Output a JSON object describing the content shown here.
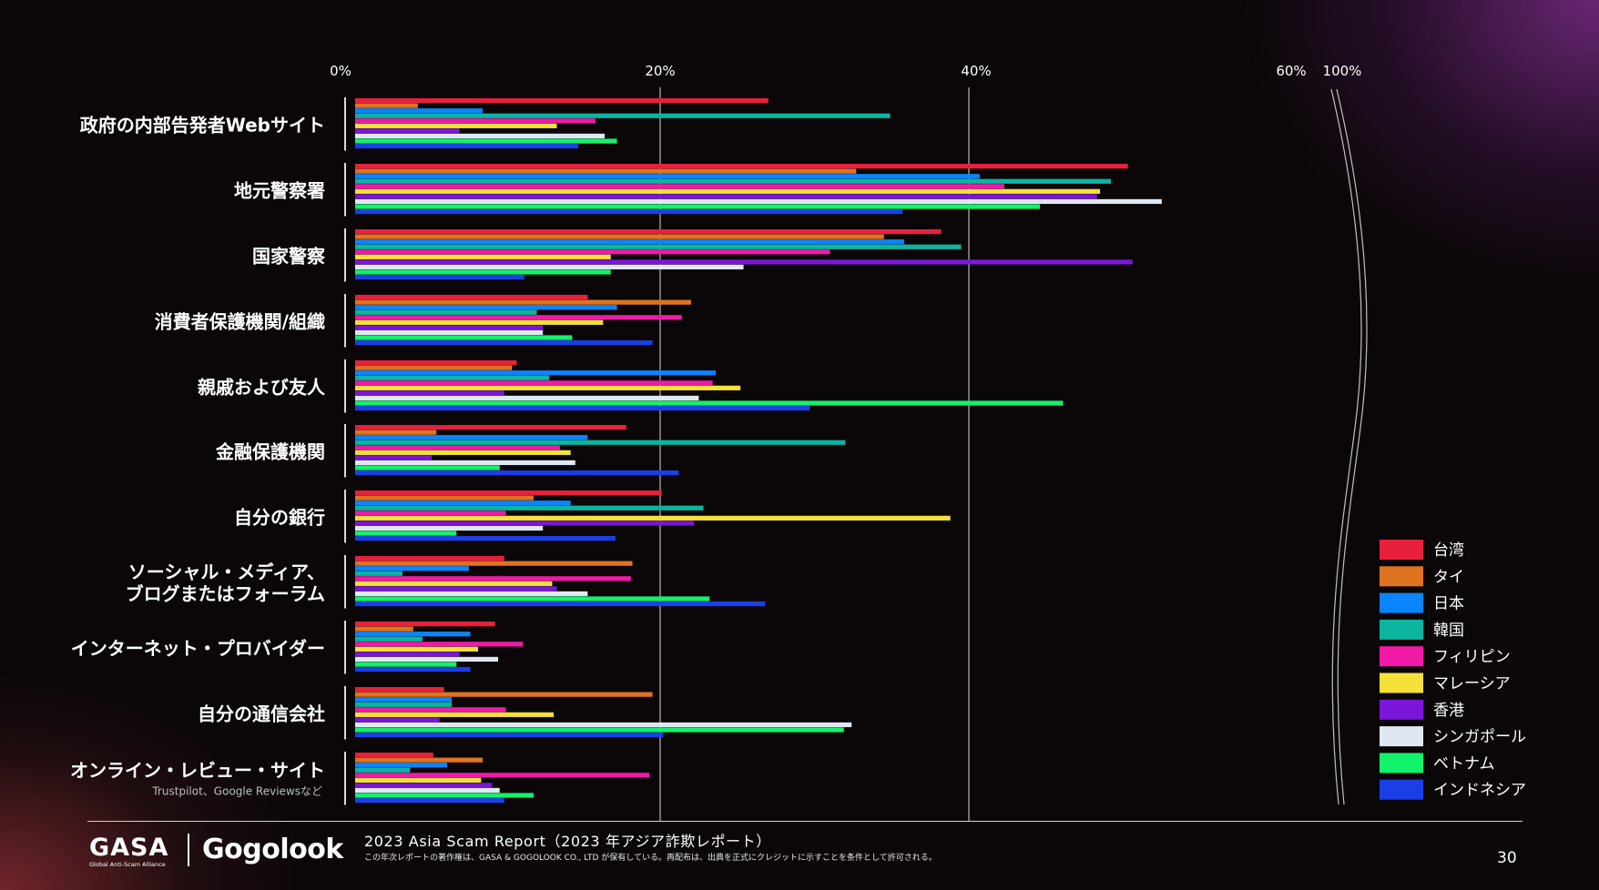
{
  "colors": {
    "background": "#0b0708",
    "grid": "#ffffff",
    "台湾": "#e8203c",
    "タイ": "#e0731f",
    "日本": "#0a84ff",
    "韓国": "#0bb5a0",
    "フィリピン": "#f01aa7",
    "マレーシア": "#f6e03a",
    "香港": "#7b16d9",
    "シンガポール": "#dfe8f2",
    "ベトナム": "#12f26a",
    "インドネシア": "#1a3fe6"
  },
  "chart_data": {
    "type": "bar",
    "orientation": "horizontal",
    "x_ticks": [
      "0%",
      "20%",
      "40%",
      "60%",
      "100%"
    ],
    "xlim": [
      0,
      60
    ],
    "axis_break_between": [
      "60%",
      "100%"
    ],
    "grid": true,
    "legend_position": "right",
    "categories": [
      "政府の内部告発者Webサイト",
      "地元警察署",
      "国家警察",
      "消費者保護機関/組織",
      "親戚および友人",
      "金融保護機関",
      "自分の銀行",
      "ソーシャル・メディア、\nブログまたはフォーラム",
      "インターネット・プロバイダー",
      "自分の通信会社",
      "オンライン・レビュー・サイト"
    ],
    "category_notes": [
      "",
      "",
      "",
      "",
      "",
      "",
      "",
      "",
      "",
      "",
      "Trustpilot、Google Reviewsなど"
    ],
    "series": [
      {
        "name": "台湾",
        "values": [
          27,
          50.3,
          38.2,
          15.3,
          10.7,
          17.8,
          20.1,
          9.9,
          9.3,
          6,
          5.3
        ]
      },
      {
        "name": "タイ",
        "values": [
          4.3,
          32.7,
          34.5,
          22,
          10.4,
          5.5,
          11.8,
          18.2,
          4,
          19.5,
          8.5
        ]
      },
      {
        "name": "日本",
        "values": [
          8.5,
          40.7,
          35.8,
          17.2,
          23.6,
          15.3,
          14.2,
          7.6,
          7.7,
          6.5,
          6.2
        ]
      },
      {
        "name": "韓国",
        "values": [
          34.9,
          49.2,
          39.5,
          12,
          12.8,
          32,
          22.8,
          3.3,
          4.6,
          6.5,
          3.8
        ]
      },
      {
        "name": "フィリピン",
        "values": [
          15.8,
          42.3,
          31,
          21.4,
          23.4,
          13.5,
          10,
          18.1,
          11.1,
          10,
          19.3
        ]
      },
      {
        "name": "マレーシア",
        "values": [
          13.3,
          48.5,
          16.8,
          16.3,
          25.2,
          14.2,
          38.8,
          13,
          8.2,
          13.1,
          8.4
        ]
      },
      {
        "name": "香港",
        "values": [
          7,
          48.3,
          50.6,
          12.4,
          9.9,
          5.2,
          22.2,
          13.3,
          7,
          5.7,
          9.1
        ]
      },
      {
        "name": "シンガポール",
        "values": [
          16.4,
          52.5,
          25.4,
          12.4,
          22.5,
          14.5,
          12.4,
          15.3,
          9.5,
          32.4,
          9.6
        ]
      },
      {
        "name": "ベトナム",
        "values": [
          17.2,
          44.6,
          16.8,
          14.3,
          46.1,
          9.6,
          6.8,
          23.2,
          6.8,
          31.9,
          11.8
        ]
      },
      {
        "name": "インドネシア",
        "values": [
          14.7,
          35.7,
          11.2,
          19.5,
          29.7,
          21.2,
          17.1,
          26.8,
          7.7,
          20.2,
          9.9
        ]
      }
    ]
  },
  "footer": {
    "logo_gasa": "GASA",
    "logo_gasa_sub": "Global Anti-Scam Alliance",
    "logo_gogolook": "Gogolook",
    "report_title": "2023 Asia Scam Report（2023 年アジア詐欺レポート）",
    "copyright": "この年次レポートの著作権は、GASA & GOGOLOOK CO., LTD が保有している。再配布は、出典を正式にクレジットに示すことを条件として許可される。",
    "page_number": "30"
  }
}
